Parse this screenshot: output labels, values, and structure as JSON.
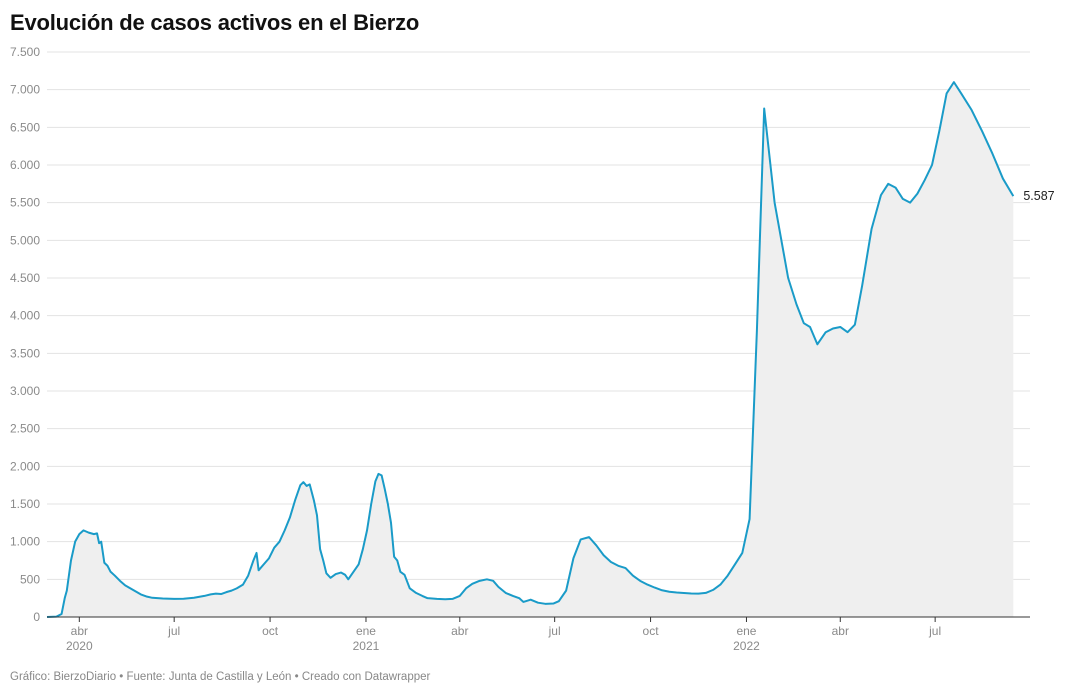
{
  "title": "Evolución de casos activos en el Bierzo",
  "footer": "Gráfico: BierzoDiario • Fuente: Junta de Castilla y León • Creado con Datawrapper",
  "colors": {
    "line": "#1a9bc8",
    "area": "#efefef",
    "grid": "#e3e3e3",
    "axis": "#333333"
  },
  "chart_data": {
    "type": "area",
    "title": "Evolución de casos activos en el Bierzo",
    "xlabel": "",
    "ylabel": "",
    "ylim": [
      0,
      7500
    ],
    "xlim": [
      "2020-03-01",
      "2022-09-30"
    ],
    "grid": true,
    "y_ticks": [
      {
        "value": 0,
        "label": "0"
      },
      {
        "value": 500,
        "label": "500"
      },
      {
        "value": 1000,
        "label": "1.000"
      },
      {
        "value": 1500,
        "label": "1.500"
      },
      {
        "value": 2000,
        "label": "2.000"
      },
      {
        "value": 2500,
        "label": "2.500"
      },
      {
        "value": 3000,
        "label": "3.000"
      },
      {
        "value": 3500,
        "label": "3.500"
      },
      {
        "value": 4000,
        "label": "4.000"
      },
      {
        "value": 4500,
        "label": "4.500"
      },
      {
        "value": 5000,
        "label": "5.000"
      },
      {
        "value": 5500,
        "label": "5.500"
      },
      {
        "value": 6000,
        "label": "6.000"
      },
      {
        "value": 6500,
        "label": "6.500"
      },
      {
        "value": 7000,
        "label": "7.000"
      },
      {
        "value": 7500,
        "label": "7.500"
      }
    ],
    "x_ticks": [
      {
        "date": "2020-04-01",
        "label": "abr",
        "year": "2020"
      },
      {
        "date": "2020-07-01",
        "label": "jul",
        "year": ""
      },
      {
        "date": "2020-10-01",
        "label": "oct",
        "year": ""
      },
      {
        "date": "2021-01-01",
        "label": "ene",
        "year": "2021"
      },
      {
        "date": "2021-04-01",
        "label": "abr",
        "year": ""
      },
      {
        "date": "2021-07-01",
        "label": "jul",
        "year": ""
      },
      {
        "date": "2021-10-01",
        "label": "oct",
        "year": ""
      },
      {
        "date": "2022-01-01",
        "label": "ene",
        "year": "2022"
      },
      {
        "date": "2022-04-01",
        "label": "abr",
        "year": ""
      },
      {
        "date": "2022-07-01",
        "label": "jul",
        "year": ""
      }
    ],
    "end_label": "5.587",
    "series": [
      {
        "name": "",
        "points": [
          [
            "2020-03-01",
            0
          ],
          [
            "2020-03-10",
            5
          ],
          [
            "2020-03-15",
            40
          ],
          [
            "2020-03-18",
            250
          ],
          [
            "2020-03-20",
            350
          ],
          [
            "2020-03-24",
            750
          ],
          [
            "2020-03-28",
            1000
          ],
          [
            "2020-04-01",
            1100
          ],
          [
            "2020-04-05",
            1150
          ],
          [
            "2020-04-10",
            1120
          ],
          [
            "2020-04-15",
            1100
          ],
          [
            "2020-04-18",
            1110
          ],
          [
            "2020-04-20",
            980
          ],
          [
            "2020-04-22",
            1000
          ],
          [
            "2020-04-25",
            720
          ],
          [
            "2020-04-28",
            680
          ],
          [
            "2020-05-01",
            600
          ],
          [
            "2020-05-05",
            550
          ],
          [
            "2020-05-10",
            480
          ],
          [
            "2020-05-15",
            420
          ],
          [
            "2020-05-20",
            380
          ],
          [
            "2020-05-25",
            340
          ],
          [
            "2020-05-30",
            300
          ],
          [
            "2020-06-05",
            270
          ],
          [
            "2020-06-10",
            255
          ],
          [
            "2020-06-20",
            245
          ],
          [
            "2020-07-01",
            240
          ],
          [
            "2020-07-10",
            242
          ],
          [
            "2020-07-20",
            255
          ],
          [
            "2020-07-30",
            280
          ],
          [
            "2020-08-05",
            300
          ],
          [
            "2020-08-10",
            310
          ],
          [
            "2020-08-15",
            305
          ],
          [
            "2020-08-20",
            330
          ],
          [
            "2020-08-25",
            350
          ],
          [
            "2020-08-30",
            380
          ],
          [
            "2020-09-05",
            430
          ],
          [
            "2020-09-10",
            550
          ],
          [
            "2020-09-15",
            750
          ],
          [
            "2020-09-18",
            850
          ],
          [
            "2020-09-20",
            620
          ],
          [
            "2020-09-25",
            700
          ],
          [
            "2020-09-30",
            780
          ],
          [
            "2020-10-05",
            920
          ],
          [
            "2020-10-10",
            1000
          ],
          [
            "2020-10-15",
            1150
          ],
          [
            "2020-10-20",
            1320
          ],
          [
            "2020-10-25",
            1550
          ],
          [
            "2020-10-30",
            1750
          ],
          [
            "2020-11-02",
            1790
          ],
          [
            "2020-11-05",
            1740
          ],
          [
            "2020-11-08",
            1760
          ],
          [
            "2020-11-12",
            1550
          ],
          [
            "2020-11-15",
            1350
          ],
          [
            "2020-11-18",
            900
          ],
          [
            "2020-11-21",
            750
          ],
          [
            "2020-11-24",
            580
          ],
          [
            "2020-11-28",
            520
          ],
          [
            "2020-12-03",
            570
          ],
          [
            "2020-12-08",
            590
          ],
          [
            "2020-12-12",
            560
          ],
          [
            "2020-12-15",
            500
          ],
          [
            "2020-12-20",
            600
          ],
          [
            "2020-12-25",
            700
          ],
          [
            "2020-12-29",
            900
          ],
          [
            "2021-01-02",
            1150
          ],
          [
            "2021-01-06",
            1500
          ],
          [
            "2021-01-10",
            1800
          ],
          [
            "2021-01-13",
            1900
          ],
          [
            "2021-01-16",
            1880
          ],
          [
            "2021-01-19",
            1700
          ],
          [
            "2021-01-22",
            1500
          ],
          [
            "2021-01-25",
            1250
          ],
          [
            "2021-01-28",
            800
          ],
          [
            "2021-01-31",
            750
          ],
          [
            "2021-02-03",
            600
          ],
          [
            "2021-02-07",
            560
          ],
          [
            "2021-02-12",
            380
          ],
          [
            "2021-02-18",
            320
          ],
          [
            "2021-02-24",
            280
          ],
          [
            "2021-03-01",
            250
          ],
          [
            "2021-03-10",
            240
          ],
          [
            "2021-03-18",
            235
          ],
          [
            "2021-03-25",
            240
          ],
          [
            "2021-04-01",
            280
          ],
          [
            "2021-04-07",
            380
          ],
          [
            "2021-04-13",
            440
          ],
          [
            "2021-04-20",
            480
          ],
          [
            "2021-04-27",
            500
          ],
          [
            "2021-05-03",
            480
          ],
          [
            "2021-05-08",
            400
          ],
          [
            "2021-05-15",
            320
          ],
          [
            "2021-05-22",
            280
          ],
          [
            "2021-05-28",
            250
          ],
          [
            "2021-06-01",
            200
          ],
          [
            "2021-06-08",
            230
          ],
          [
            "2021-06-15",
            190
          ],
          [
            "2021-06-22",
            175
          ],
          [
            "2021-06-30",
            180
          ],
          [
            "2021-07-05",
            210
          ],
          [
            "2021-07-12",
            350
          ],
          [
            "2021-07-19",
            780
          ],
          [
            "2021-07-26",
            1030
          ],
          [
            "2021-08-03",
            1060
          ],
          [
            "2021-08-10",
            950
          ],
          [
            "2021-08-17",
            820
          ],
          [
            "2021-08-24",
            730
          ],
          [
            "2021-08-31",
            680
          ],
          [
            "2021-09-07",
            650
          ],
          [
            "2021-09-14",
            550
          ],
          [
            "2021-09-21",
            480
          ],
          [
            "2021-09-28",
            430
          ],
          [
            "2021-10-05",
            390
          ],
          [
            "2021-10-12",
            355
          ],
          [
            "2021-10-19",
            335
          ],
          [
            "2021-10-26",
            325
          ],
          [
            "2021-11-02",
            318
          ],
          [
            "2021-11-09",
            312
          ],
          [
            "2021-11-16",
            310
          ],
          [
            "2021-11-23",
            320
          ],
          [
            "2021-11-30",
            360
          ],
          [
            "2021-12-07",
            430
          ],
          [
            "2021-12-14",
            550
          ],
          [
            "2021-12-21",
            700
          ],
          [
            "2021-12-28",
            850
          ],
          [
            "2022-01-04",
            1300
          ],
          [
            "2022-01-11",
            3800
          ],
          [
            "2022-01-18",
            6750
          ],
          [
            "2022-01-28",
            5500
          ],
          [
            "2022-02-10",
            4500
          ],
          [
            "2022-02-18",
            4150
          ],
          [
            "2022-02-25",
            3900
          ],
          [
            "2022-03-03",
            3850
          ],
          [
            "2022-03-10",
            3620
          ],
          [
            "2022-03-18",
            3780
          ],
          [
            "2022-03-25",
            3830
          ],
          [
            "2022-04-01",
            3850
          ],
          [
            "2022-04-08",
            3780
          ],
          [
            "2022-04-15",
            3880
          ],
          [
            "2022-04-22",
            4400
          ],
          [
            "2022-05-01",
            5150
          ],
          [
            "2022-05-10",
            5600
          ],
          [
            "2022-05-17",
            5750
          ],
          [
            "2022-05-24",
            5700
          ],
          [
            "2022-05-31",
            5550
          ],
          [
            "2022-06-07",
            5500
          ],
          [
            "2022-06-14",
            5620
          ],
          [
            "2022-06-21",
            5800
          ],
          [
            "2022-06-28",
            6000
          ],
          [
            "2022-07-05",
            6450
          ],
          [
            "2022-07-12",
            6950
          ],
          [
            "2022-07-19",
            7100
          ],
          [
            "2022-07-26",
            6950
          ],
          [
            "2022-08-05",
            6730
          ],
          [
            "2022-08-15",
            6450
          ],
          [
            "2022-08-25",
            6150
          ],
          [
            "2022-09-04",
            5820
          ],
          [
            "2022-09-14",
            5587
          ]
        ]
      }
    ]
  }
}
